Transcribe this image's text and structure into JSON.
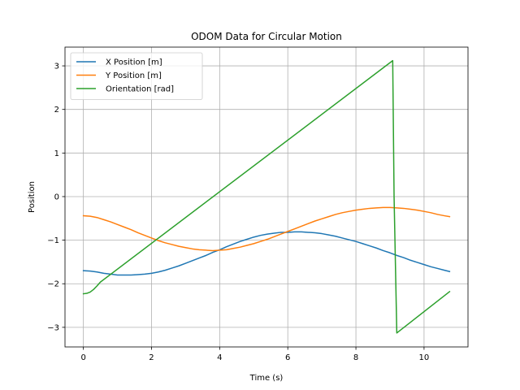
{
  "chart_data": {
    "type": "line",
    "title": "ODOM Data for Circular Motion",
    "xlabel": "Time (s)",
    "ylabel": "Position",
    "xlim": [
      -0.54,
      11.29
    ],
    "ylim": [
      -3.45,
      3.43
    ],
    "xticks": [
      0,
      2,
      4,
      6,
      8,
      10
    ],
    "yticks": [
      -3,
      -2,
      -1,
      0,
      1,
      2,
      3
    ],
    "grid": true,
    "legend_position": "top-left",
    "series": [
      {
        "name": "X Position [m]",
        "color": "#1f77b4",
        "x": [
          0,
          0.2,
          0.4,
          0.6,
          0.8,
          1.0,
          1.2,
          1.4,
          1.6,
          1.8,
          2.0,
          2.2,
          2.4,
          2.6,
          2.8,
          3.0,
          3.2,
          3.4,
          3.6,
          3.8,
          4.0,
          4.2,
          4.4,
          4.6,
          4.8,
          5.0,
          5.2,
          5.4,
          5.6,
          5.8,
          6.0,
          6.2,
          6.4,
          6.6,
          6.8,
          7.0,
          7.2,
          7.4,
          7.6,
          7.8,
          8.0,
          8.2,
          8.4,
          8.6,
          8.8,
          9.0,
          9.2,
          9.4,
          9.6,
          9.8,
          10.0,
          10.2,
          10.4,
          10.6,
          10.75
        ],
        "y": [
          -1.7,
          -1.71,
          -1.73,
          -1.76,
          -1.78,
          -1.8,
          -1.8,
          -1.8,
          -1.79,
          -1.78,
          -1.76,
          -1.73,
          -1.69,
          -1.64,
          -1.59,
          -1.53,
          -1.47,
          -1.41,
          -1.35,
          -1.28,
          -1.22,
          -1.15,
          -1.09,
          -1.03,
          -0.98,
          -0.93,
          -0.89,
          -0.86,
          -0.84,
          -0.82,
          -0.82,
          -0.81,
          -0.81,
          -0.82,
          -0.83,
          -0.85,
          -0.88,
          -0.91,
          -0.95,
          -0.99,
          -1.03,
          -1.08,
          -1.13,
          -1.18,
          -1.24,
          -1.29,
          -1.35,
          -1.4,
          -1.46,
          -1.51,
          -1.56,
          -1.61,
          -1.65,
          -1.69,
          -1.72
        ]
      },
      {
        "name": "Y Position [m]",
        "color": "#ff7f0e",
        "x": [
          0,
          0.2,
          0.4,
          0.6,
          0.8,
          1.0,
          1.2,
          1.4,
          1.6,
          1.8,
          2.0,
          2.2,
          2.4,
          2.6,
          2.8,
          3.0,
          3.2,
          3.4,
          3.6,
          3.8,
          4.0,
          4.2,
          4.4,
          4.6,
          4.8,
          5.0,
          5.2,
          5.4,
          5.6,
          5.8,
          6.0,
          6.2,
          6.4,
          6.6,
          6.8,
          7.0,
          7.2,
          7.4,
          7.6,
          7.8,
          8.0,
          8.2,
          8.4,
          8.6,
          8.8,
          9.0,
          9.2,
          9.4,
          9.6,
          9.8,
          10.0,
          10.2,
          10.4,
          10.6,
          10.75
        ],
        "y": [
          -0.44,
          -0.45,
          -0.48,
          -0.53,
          -0.58,
          -0.64,
          -0.7,
          -0.76,
          -0.83,
          -0.89,
          -0.95,
          -1.01,
          -1.06,
          -1.1,
          -1.14,
          -1.17,
          -1.2,
          -1.22,
          -1.23,
          -1.24,
          -1.23,
          -1.22,
          -1.19,
          -1.16,
          -1.12,
          -1.08,
          -1.03,
          -0.98,
          -0.92,
          -0.86,
          -0.8,
          -0.74,
          -0.68,
          -0.62,
          -0.56,
          -0.51,
          -0.46,
          -0.41,
          -0.37,
          -0.34,
          -0.31,
          -0.29,
          -0.27,
          -0.26,
          -0.25,
          -0.25,
          -0.26,
          -0.27,
          -0.29,
          -0.31,
          -0.34,
          -0.37,
          -0.41,
          -0.44,
          -0.46
        ]
      },
      {
        "name": "Orientation [rad]",
        "color": "#2ca02c",
        "x": [
          0,
          0.1,
          0.2,
          0.3,
          0.4,
          0.5,
          9.08,
          9.12,
          9.2,
          10.75
        ],
        "y": [
          -2.23,
          -2.22,
          -2.19,
          -2.13,
          -2.05,
          -1.96,
          3.12,
          0.0,
          -3.13,
          -2.18
        ]
      }
    ]
  }
}
